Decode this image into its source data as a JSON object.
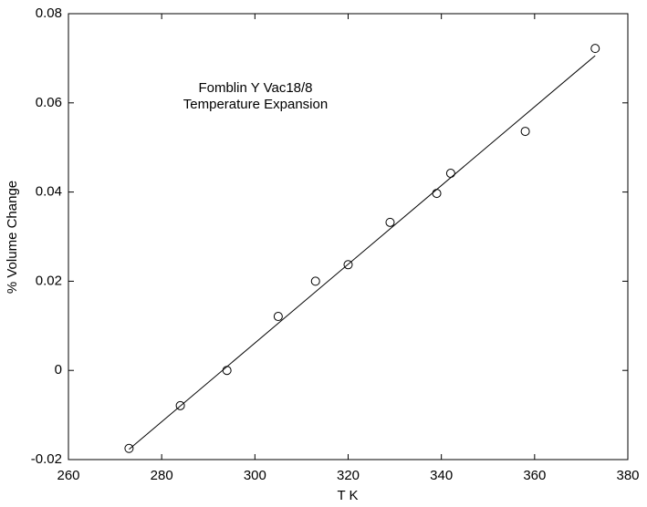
{
  "chart_data": {
    "type": "scatter",
    "annotations": [
      "Fomblin Y Vac18/8",
      "Temperature Expansion"
    ],
    "xlabel": "T  K",
    "ylabel": "% Volume Change",
    "xlim": [
      260,
      380
    ],
    "xticks": [
      260,
      280,
      300,
      320,
      340,
      360,
      380
    ],
    "ylim": [
      -0.02,
      0.08
    ],
    "yticks": [
      -0.02,
      0,
      0.02,
      0.04,
      0.06,
      0.08
    ],
    "grid": false,
    "series": [
      {
        "type": "scatter",
        "color": "#000000",
        "x": [
          273,
          284,
          294,
          305,
          313,
          320,
          329,
          339,
          342,
          358,
          373
        ],
        "values": [
          -0.0175,
          -0.0079,
          0,
          0.0121,
          0.02,
          0.0237,
          0.0332,
          0.0397,
          0.0442,
          0.0536,
          0.0722
        ]
      },
      {
        "type": "line",
        "color": "#000000",
        "x": [
          273,
          373
        ],
        "values": [
          -0.0177,
          0.0706
        ]
      }
    ]
  }
}
